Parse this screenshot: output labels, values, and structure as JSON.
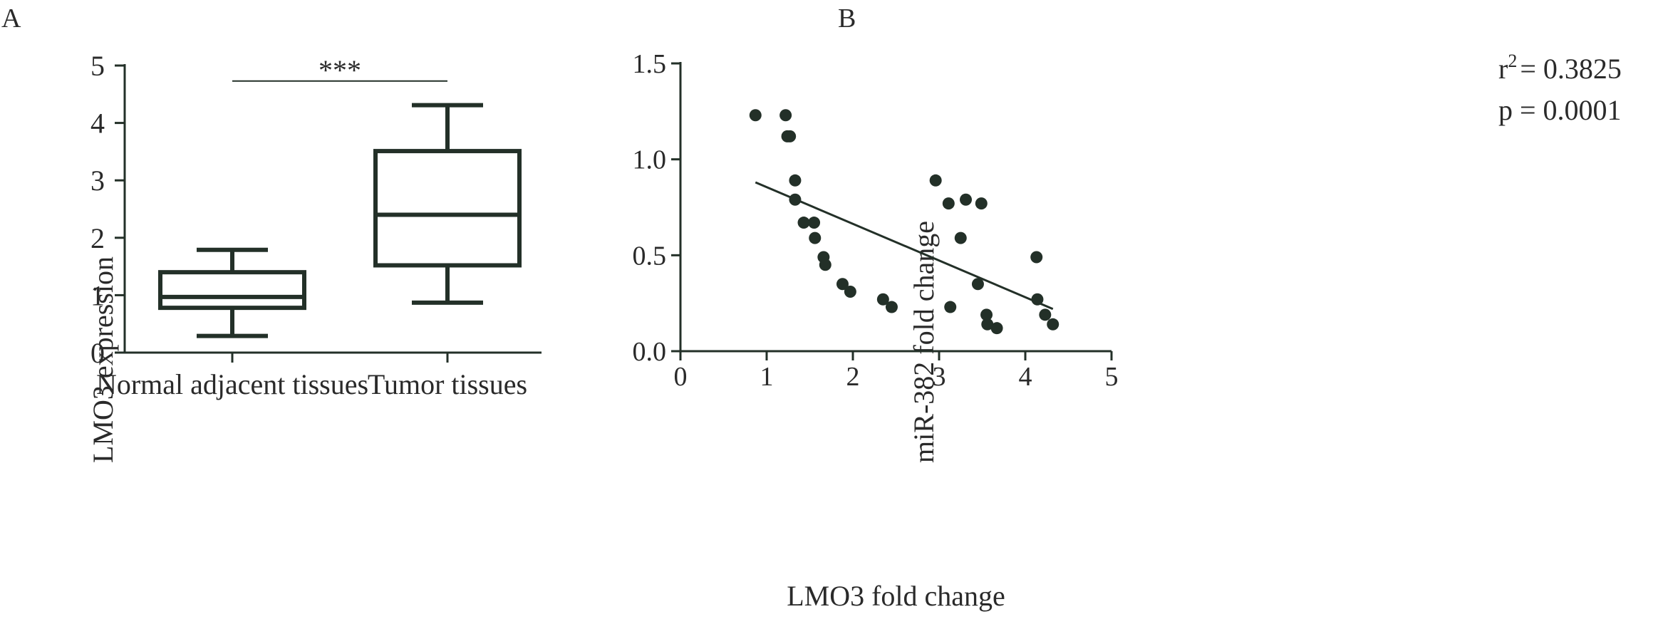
{
  "colors": {
    "ink": "#233028",
    "text": "#2a2a2a"
  },
  "panels": {
    "a": {
      "letter": "A"
    },
    "b": {
      "letter": "B"
    }
  },
  "chart_data": [
    {
      "type": "box",
      "ylabel": "LMO3 expression",
      "ylim": [
        0,
        5
      ],
      "yticks": [
        0,
        1,
        2,
        3,
        4,
        5
      ],
      "categories": [
        "Normal adjacent tissues",
        "Tumor tissues"
      ],
      "boxes": [
        {
          "min": 0.29,
          "q1": 0.78,
          "median": 0.97,
          "q3": 1.4,
          "max": 1.79
        },
        {
          "min": 0.87,
          "q1": 1.52,
          "median": 2.4,
          "q3": 3.51,
          "max": 4.31
        }
      ],
      "significance": {
        "label": "***",
        "between": [
          0,
          1
        ],
        "y": 4.73
      }
    },
    {
      "type": "scatter",
      "xlabel": "LMO3 fold change",
      "ylabel": "miR-382 fold change",
      "xlim": [
        0,
        5
      ],
      "ylim": [
        0,
        1.5
      ],
      "xticks": [
        "0",
        "1",
        "2",
        "3",
        "4",
        "5"
      ],
      "yticks": [
        "0.0",
        "0.5",
        "1.0",
        "1.5"
      ],
      "points": [
        [
          0.87,
          1.23
        ],
        [
          1.22,
          1.23
        ],
        [
          1.24,
          1.12
        ],
        [
          1.27,
          1.12
        ],
        [
          1.33,
          0.89
        ],
        [
          1.33,
          0.79
        ],
        [
          1.43,
          0.67
        ],
        [
          1.55,
          0.67
        ],
        [
          1.56,
          0.59
        ],
        [
          1.66,
          0.49
        ],
        [
          1.68,
          0.45
        ],
        [
          1.88,
          0.35
        ],
        [
          1.97,
          0.31
        ],
        [
          2.35,
          0.27
        ],
        [
          2.45,
          0.23
        ],
        [
          2.96,
          0.89
        ],
        [
          3.11,
          0.77
        ],
        [
          3.13,
          0.23
        ],
        [
          3.25,
          0.59
        ],
        [
          3.31,
          0.79
        ],
        [
          3.45,
          0.35
        ],
        [
          3.49,
          0.77
        ],
        [
          3.55,
          0.19
        ],
        [
          3.56,
          0.14
        ],
        [
          3.67,
          0.12
        ],
        [
          4.13,
          0.49
        ],
        [
          4.14,
          0.27
        ],
        [
          4.23,
          0.19
        ],
        [
          4.32,
          0.14
        ]
      ],
      "fit": {
        "x": [
          0.87,
          4.32
        ],
        "y": [
          0.88,
          0.22
        ]
      },
      "stats": {
        "r2_base": "r",
        "r2_exp": "2",
        "r2_value": "= 0.3825",
        "p": "p = 0.0001"
      }
    }
  ]
}
